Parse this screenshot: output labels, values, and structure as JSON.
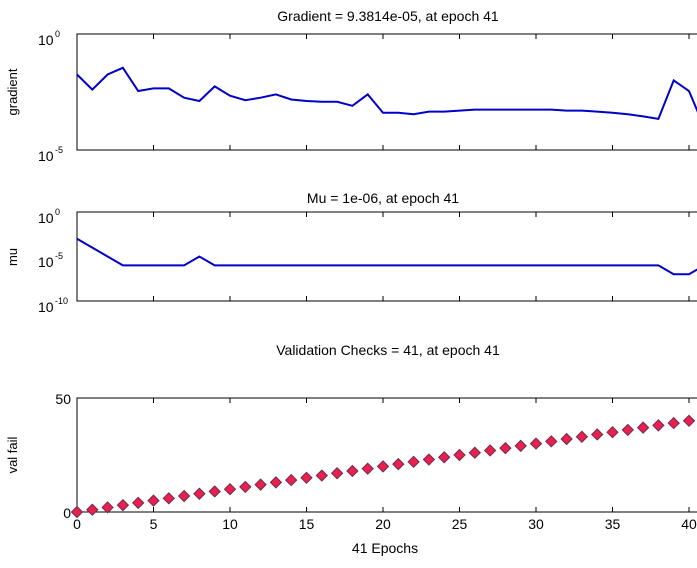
{
  "chart_data": [
    {
      "type": "line",
      "title": "Gradient = 9.3814e-05, at epoch 41",
      "ylabel": "gradient",
      "xlabel": "",
      "yscale": "log",
      "ylim": [
        1e-05,
        1
      ],
      "xlim": [
        0,
        41
      ],
      "ytick_labels": [
        {
          "base": "10",
          "exp": "0"
        },
        {
          "base": "10",
          "exp": "-5"
        }
      ],
      "series": [
        {
          "x": [
            0,
            1,
            2,
            3,
            4,
            5,
            6,
            7,
            8,
            9,
            10,
            11,
            12,
            13,
            14,
            15,
            16,
            17,
            18,
            19,
            20,
            21,
            22,
            23,
            24,
            25,
            26,
            27,
            28,
            29,
            30,
            31,
            32,
            33,
            34,
            35,
            36,
            37,
            38,
            39,
            40,
            41
          ],
          "y": [
            0.018,
            0.004,
            0.018,
            0.035,
            0.0035,
            0.0045,
            0.0045,
            0.0018,
            0.0013,
            0.0055,
            0.0022,
            0.0014,
            0.0018,
            0.0025,
            0.0015,
            0.0013,
            0.0012,
            0.0012,
            0.0008,
            0.0025,
            0.0004,
            0.0004,
            0.00035,
            0.00045,
            0.00045,
            0.0005,
            0.00055,
            0.00055,
            0.00055,
            0.00055,
            0.00055,
            0.00055,
            0.0005,
            0.0005,
            0.00045,
            0.0004,
            0.00035,
            0.00028,
            0.00022,
            0.01,
            0.0035,
            9.4e-05
          ]
        }
      ],
      "color": "#0000c8"
    },
    {
      "type": "line",
      "title": "Mu = 1e-06, at epoch 41",
      "ylabel": "mu",
      "xlabel": "",
      "yscale": "log",
      "ylim": [
        1e-10,
        1
      ],
      "xlim": [
        0,
        41
      ],
      "ytick_labels": [
        {
          "base": "10",
          "exp": "0"
        },
        {
          "base": "10",
          "exp": "-5"
        },
        {
          "base": "10",
          "exp": "-10"
        }
      ],
      "series": [
        {
          "x": [
            0,
            1,
            2,
            3,
            4,
            5,
            6,
            7,
            8,
            9,
            10,
            11,
            12,
            13,
            14,
            15,
            16,
            17,
            18,
            19,
            20,
            21,
            22,
            23,
            24,
            25,
            26,
            27,
            28,
            29,
            30,
            31,
            32,
            33,
            34,
            35,
            36,
            37,
            38,
            39,
            40,
            41
          ],
          "y": [
            0.001,
            0.0001,
            1e-05,
            1e-06,
            1e-06,
            1e-06,
            1e-06,
            1e-06,
            1e-05,
            1e-06,
            1e-06,
            1e-06,
            1e-06,
            1e-06,
            1e-06,
            1e-06,
            1e-06,
            1e-06,
            1e-06,
            1e-06,
            1e-06,
            1e-06,
            1e-06,
            1e-06,
            1e-06,
            1e-06,
            1e-06,
            1e-06,
            1e-06,
            1e-06,
            1e-06,
            1e-06,
            1e-06,
            1e-06,
            1e-06,
            1e-06,
            1e-06,
            1e-06,
            1e-06,
            1e-07,
            1e-07,
            1e-06
          ]
        }
      ],
      "color": "#0000c8"
    },
    {
      "type": "scatter",
      "title": "Validation Checks = 41, at epoch 41",
      "ylabel": "val fail",
      "xlabel": "41 Epochs",
      "ylim": [
        0,
        50
      ],
      "xlim": [
        0,
        41
      ],
      "ytick_labels": [
        "50",
        "0"
      ],
      "xtick_labels": [
        "0",
        "5",
        "10",
        "15",
        "20",
        "25",
        "30",
        "35",
        "40"
      ],
      "series": [
        {
          "x": [
            0,
            1,
            2,
            3,
            4,
            5,
            6,
            7,
            8,
            9,
            10,
            11,
            12,
            13,
            14,
            15,
            16,
            17,
            18,
            19,
            20,
            21,
            22,
            23,
            24,
            25,
            26,
            27,
            28,
            29,
            30,
            31,
            32,
            33,
            34,
            35,
            36,
            37,
            38,
            39,
            40,
            41
          ],
          "y": [
            0,
            1,
            2,
            3,
            4,
            5,
            6,
            7,
            8,
            9,
            10,
            11,
            12,
            13,
            14,
            15,
            16,
            17,
            18,
            19,
            20,
            21,
            22,
            23,
            24,
            25,
            26,
            27,
            28,
            29,
            30,
            31,
            32,
            33,
            34,
            35,
            36,
            37,
            38,
            39,
            40,
            41
          ]
        }
      ],
      "marker": "diamond",
      "marker_fill": "#e8204a",
      "marker_edge": "#6e2a5a"
    }
  ]
}
